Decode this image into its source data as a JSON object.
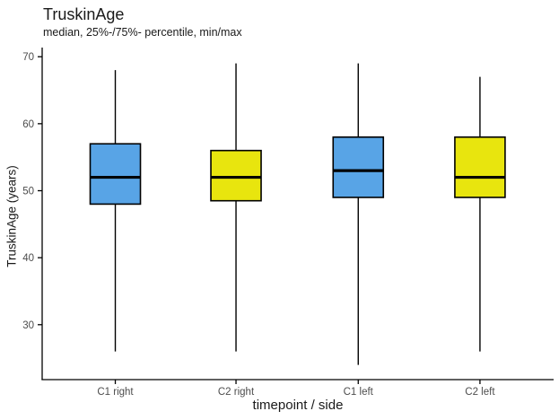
{
  "chart_data": {
    "type": "boxplot",
    "title": "TruskinAge",
    "subtitle": "median, 25%-/75%- percentile, min/max",
    "xlabel": "timepoint / side",
    "ylabel": "TruskinAge (years)",
    "categories": [
      "C1 right",
      "C2 right",
      "C1 left",
      "C2 left"
    ],
    "y_ticks": [
      30,
      40,
      50,
      60,
      70
    ],
    "ylim": [
      21.8,
      71.1
    ],
    "grid": false,
    "legend": "none",
    "boxes": [
      {
        "category": "C1 right",
        "fill": "#58A4E6",
        "min": 26,
        "q1": 48,
        "median": 52,
        "q3": 57,
        "max": 68
      },
      {
        "category": "C2 right",
        "fill": "#E8E50E",
        "min": 26,
        "q1": 48.5,
        "median": 52,
        "q3": 56,
        "max": 69
      },
      {
        "category": "C1 left",
        "fill": "#58A4E6",
        "min": 24,
        "q1": 49,
        "median": 53,
        "q3": 58,
        "max": 69
      },
      {
        "category": "C2 left",
        "fill": "#E8E50E",
        "min": 26,
        "q1": 49,
        "median": 52,
        "q3": 58,
        "max": 67
      }
    ],
    "colors": {
      "box_blue": "#58A4E6",
      "box_yellow": "#E8E50E",
      "box_border": "#000000",
      "axis_line": "#000000",
      "tick_label": "#4d4d4d",
      "text": "#1a1a1a"
    }
  }
}
